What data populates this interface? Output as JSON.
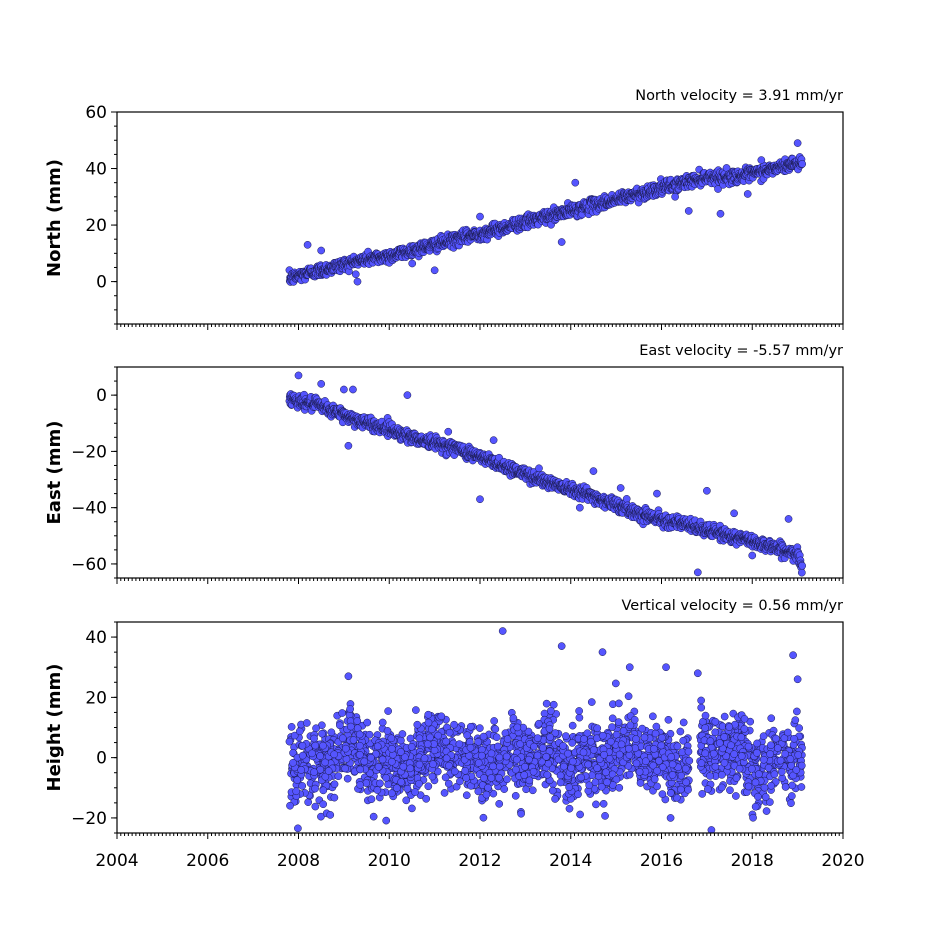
{
  "chart_data": [
    {
      "type": "scatter",
      "title": "North velocity = 3.91 mm/yr",
      "ylabel": "North (mm)",
      "xlim": [
        2004,
        2020
      ],
      "ylim": [
        -15,
        60
      ],
      "yticks": [
        0,
        20,
        40,
        60
      ],
      "ytick_labels": [
        "0",
        "20",
        "40",
        "60"
      ],
      "xticks": [
        2004,
        2006,
        2008,
        2010,
        2012,
        2014,
        2016,
        2018,
        2020
      ],
      "xtick_labels": [],
      "marker_color": "#5555ff",
      "series": [
        {
          "x": [
            2007.8,
            2008.0,
            2008.2,
            2008.5,
            2009.0,
            2009.5,
            2010.0,
            2010.5,
            2011.0,
            2011.5,
            2012.0,
            2012.5,
            2013.0,
            2013.5,
            2014.0,
            2014.5,
            2015.0,
            2015.5,
            2016.0,
            2016.5,
            2017.0,
            2017.5,
            2018.0,
            2018.5,
            2019.0,
            2019.1
          ],
          "y": [
            1,
            2,
            3,
            4,
            6,
            8,
            9,
            11,
            13,
            15,
            17,
            19,
            21,
            23,
            25,
            27,
            29,
            31,
            33,
            35,
            37,
            37,
            38,
            40,
            42,
            42
          ]
        }
      ],
      "outliers": {
        "x": [
          2008.2,
          2008.5,
          2009.3,
          2011.0,
          2012.0,
          2013.8,
          2014.1,
          2016.3,
          2016.6,
          2017.3,
          2017.9,
          2018.2,
          2019.0
        ],
        "y": [
          13,
          11,
          0,
          4,
          23,
          14,
          35,
          30,
          25,
          24,
          31,
          43,
          49
        ]
      }
    },
    {
      "type": "scatter",
      "title": "East velocity = -5.57 mm/yr",
      "ylabel": "East (mm)",
      "xlim": [
        2004,
        2020
      ],
      "ylim": [
        -65,
        10
      ],
      "yticks": [
        0,
        -20,
        -40,
        -60
      ],
      "ytick_labels": [
        "0",
        "−20",
        "−40",
        "−60"
      ],
      "xticks": [
        2004,
        2006,
        2008,
        2010,
        2012,
        2014,
        2016,
        2018,
        2020
      ],
      "xtick_labels": [],
      "marker_color": "#5555ff",
      "series": [
        {
          "x": [
            2007.8,
            2008.0,
            2008.5,
            2009.0,
            2009.5,
            2010.0,
            2010.5,
            2011.0,
            2011.5,
            2012.0,
            2012.5,
            2013.0,
            2013.5,
            2014.0,
            2014.5,
            2015.0,
            2015.5,
            2016.0,
            2016.5,
            2017.0,
            2017.5,
            2018.0,
            2018.5,
            2019.0,
            2019.1
          ],
          "y": [
            -1,
            -2,
            -4,
            -7,
            -10,
            -12,
            -15,
            -17,
            -19,
            -22,
            -25,
            -28,
            -31,
            -33,
            -36,
            -39,
            -42,
            -44,
            -46,
            -48,
            -50,
            -52,
            -54,
            -57,
            -61
          ]
        }
      ],
      "outliers": {
        "x": [
          2008.0,
          2008.5,
          2009.0,
          2009.2,
          2009.1,
          2010.4,
          2011.3,
          2012.0,
          2012.3,
          2013.3,
          2014.2,
          2014.5,
          2015.1,
          2015.9,
          2016.8,
          2017.0,
          2017.6,
          2018.0,
          2018.8
        ],
        "y": [
          7,
          4,
          2,
          2,
          -18,
          0,
          -13,
          -37,
          -16,
          -26,
          -40,
          -27,
          -33,
          -35,
          -63,
          -34,
          -42,
          -57,
          -44
        ]
      }
    },
    {
      "type": "scatter",
      "title": "Vertical velocity = 0.56 mm/yr",
      "ylabel": "Height (mm)",
      "xlim": [
        2004,
        2020
      ],
      "ylim": [
        -25,
        45
      ],
      "yticks": [
        -20,
        0,
        20,
        40
      ],
      "ytick_labels": [
        "−20",
        "0",
        "20",
        "40"
      ],
      "xticks": [
        2004,
        2006,
        2008,
        2010,
        2012,
        2014,
        2016,
        2018,
        2020
      ],
      "xtick_labels": [
        "2004",
        "2006",
        "2008",
        "2010",
        "2012",
        "2014",
        "2016",
        "2018",
        "2020"
      ],
      "marker_color": "#5555ff",
      "series": [
        {
          "x_range": [
            2007.8,
            2019.1
          ],
          "y_mean": 0,
          "y_spread": 8
        }
      ],
      "outliers": {
        "x": [
          2012.5,
          2013.8,
          2014.7,
          2015.3,
          2016.1,
          2016.8,
          2017.1,
          2018.9,
          2008.7,
          2009.1,
          2019.0,
          2016.2
        ],
        "y": [
          42,
          37,
          35,
          30,
          30,
          28,
          -24,
          34,
          -19,
          27,
          26,
          -20
        ]
      }
    }
  ]
}
